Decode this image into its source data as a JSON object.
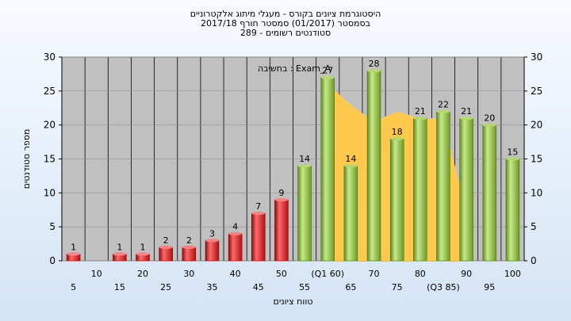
{
  "chart_data": {
    "type": "bar",
    "title_lines": [
      "היסטוגרמת ציונים בקורס - מעגלי מיתוג אלקטרוניים",
      "בסמסטר  (01/2017)  סמסטר חורף 2017/18",
      "סטודנטים רשומים - 289"
    ],
    "xlabel": "טווח ציונים",
    "ylabel": "מספר סטודנטים",
    "annotation": "בחשיבה : Exam_A",
    "ylim": [
      0,
      30
    ],
    "yticks": [
      0,
      5,
      10,
      15,
      20,
      25,
      30
    ],
    "categories": [
      "5",
      "10",
      "15",
      "20",
      "25",
      "30",
      "35",
      "40",
      "45",
      "50",
      "55",
      "(Q1 60)",
      "65",
      "70",
      "75",
      "80",
      "(Q3 85)",
      "90",
      "95",
      "100"
    ],
    "values": [
      1,
      0,
      1,
      1,
      2,
      2,
      3,
      4,
      7,
      9,
      14,
      27,
      14,
      28,
      18,
      21,
      22,
      21,
      20,
      15
    ],
    "value_labels": [
      "1",
      "",
      "1",
      "1",
      "2",
      "2",
      "3",
      "4",
      "7",
      "9",
      "14",
      "27",
      "14",
      "28",
      "18",
      "21",
      "22",
      "21",
      "20",
      "15"
    ],
    "fail_threshold": 55,
    "bar_colors": {
      "fail": "#d42020",
      "pass": "#8ab83a"
    },
    "band_color": "#ffc94d",
    "band": [
      {
        "x": "(Q1 60)",
        "y": 26
      },
      {
        "x": "65",
        "y": 23
      },
      {
        "x": "70",
        "y": 20.5
      },
      {
        "x": "75",
        "y": 22
      },
      {
        "x": "80",
        "y": 21
      },
      {
        "x": "(Q3 85)",
        "y": 21
      },
      {
        "x": "90",
        "y": 7
      }
    ]
  }
}
